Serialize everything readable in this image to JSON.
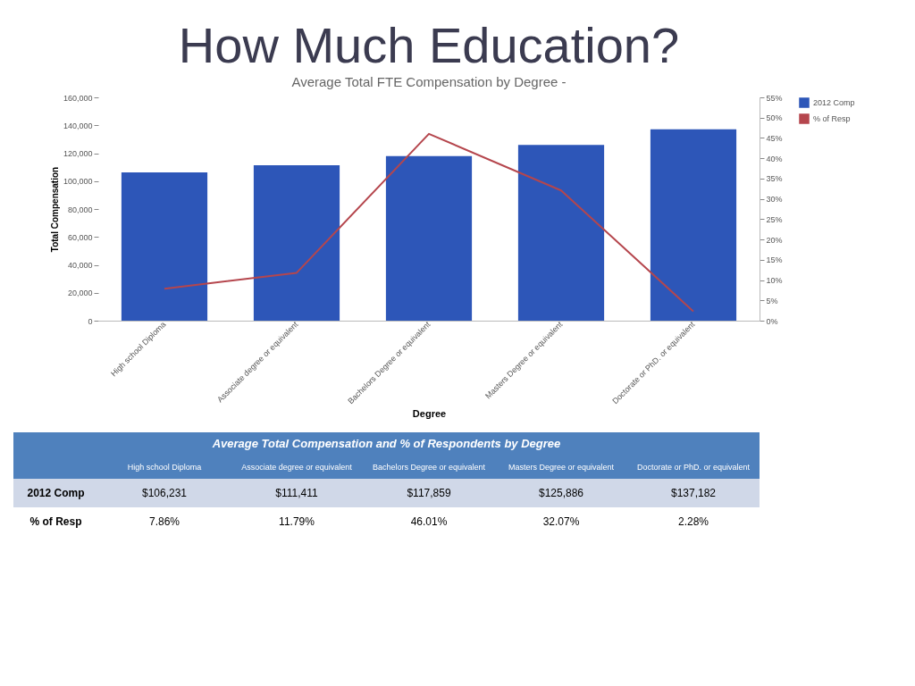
{
  "chart_data": {
    "type": "bar",
    "title": "How Much Education?",
    "subtitle": "Average Total FTE Compensation by Degree -",
    "xlabel": "Degree",
    "ylabel": "Total Compensation",
    "categories": [
      "High school Diploma",
      "Associate degree or equivalent",
      "Bachelors Degree or equivalent",
      "Masters Degree or equivalent",
      "Doctorate or PhD. or equivalent"
    ],
    "series": [
      {
        "name": "2012 Comp",
        "color": "#2d56b8",
        "values": [
          106231,
          111411,
          117859,
          125886,
          137182
        ],
        "value_labels": [
          "$106,231",
          "$111,411",
          "$117,859",
          "$125,886",
          "$137,182"
        ]
      },
      {
        "name": "% of Resp",
        "type": "line",
        "axis": "y2",
        "color": "#b5464d",
        "values": [
          7.86,
          11.79,
          46.01,
          32.07,
          2.28
        ],
        "value_labels": [
          "7.86%",
          "11.79%",
          "46.01%",
          "32.07%",
          "2.28%"
        ]
      }
    ],
    "ylim": [
      0,
      160000
    ],
    "yticks": [
      {
        "value": 0,
        "label": "0"
      },
      {
        "value": 20000,
        "label": "20,000"
      },
      {
        "value": 40000,
        "label": "40,000"
      },
      {
        "value": 60000,
        "label": "60,000"
      },
      {
        "value": 80000,
        "label": "80,000"
      },
      {
        "value": 100000,
        "label": "100,000"
      },
      {
        "value": 120000,
        "label": "120,000"
      },
      {
        "value": 140000,
        "label": "140,000"
      },
      {
        "value": 160000,
        "label": "160,000"
      }
    ],
    "y2lim": [
      0,
      55
    ],
    "y2ticks": [
      {
        "value": 0,
        "label": "0%"
      },
      {
        "value": 5,
        "label": "5%"
      },
      {
        "value": 10,
        "label": "10%"
      },
      {
        "value": 15,
        "label": "15%"
      },
      {
        "value": 20,
        "label": "20%"
      },
      {
        "value": 25,
        "label": "25%"
      },
      {
        "value": 30,
        "label": "30%"
      },
      {
        "value": 35,
        "label": "35%"
      },
      {
        "value": 40,
        "label": "40%"
      },
      {
        "value": 45,
        "label": "45%"
      },
      {
        "value": 50,
        "label": "50%"
      },
      {
        "value": 55,
        "label": "55%"
      }
    ],
    "annotations": [
      "Average Total Compensation and % of Respondents by Degree"
    ],
    "grid": false,
    "legend": "top right",
    "marker": "none",
    "line_style": "solid"
  }
}
